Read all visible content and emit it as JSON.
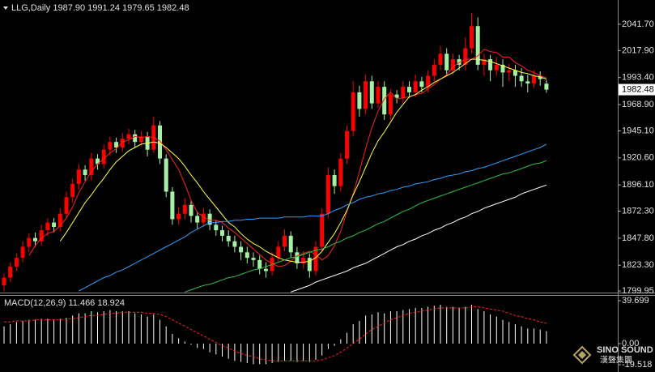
{
  "chart_data": [
    {
      "type": "candlestick",
      "title": "LLG,Daily  1987.90 1991.24 1979.65 1982.48",
      "up_color": "#ff0000",
      "down_color": "#a6f0a6",
      "ylim": [
        1798.5,
        2063.7
      ],
      "yticks": [
        {
          "value": 2041.7,
          "label": "2041.70"
        },
        {
          "value": 2017.9,
          "label": "2017.90"
        },
        {
          "value": 1993.4,
          "label": "1993.40"
        },
        {
          "value": 1968.9,
          "label": "1968.90"
        },
        {
          "value": 1945.1,
          "label": "1945.10"
        },
        {
          "value": 1920.6,
          "label": "1920.60"
        },
        {
          "value": 1896.1,
          "label": "1896.10"
        },
        {
          "value": 1872.3,
          "label": "1872.30"
        },
        {
          "value": 1847.8,
          "label": "1847.80"
        },
        {
          "value": 1823.3,
          "label": "1823.30"
        },
        1799.95
      ],
      "last_price": {
        "value": 1982.48,
        "label": "1982.48"
      },
      "ohlc": [
        [
          1805,
          1816,
          1800,
          1812
        ],
        [
          1812,
          1826,
          1808,
          1822
        ],
        [
          1822,
          1834,
          1818,
          1830
        ],
        [
          1830,
          1845,
          1826,
          1840
        ],
        [
          1840,
          1852,
          1835,
          1848
        ],
        [
          1848,
          1853,
          1840,
          1845
        ],
        [
          1845,
          1860,
          1841,
          1855
        ],
        [
          1855,
          1866,
          1850,
          1862
        ],
        [
          1862,
          1866,
          1853,
          1858
        ],
        [
          1858,
          1875,
          1854,
          1870
        ],
        [
          1870,
          1890,
          1866,
          1885
        ],
        [
          1885,
          1902,
          1880,
          1897
        ],
        [
          1897,
          1915,
          1892,
          1910
        ],
        [
          1910,
          1914,
          1900,
          1905
        ],
        [
          1905,
          1925,
          1900,
          1920
        ],
        [
          1920,
          1924,
          1910,
          1915
        ],
        [
          1915,
          1933,
          1911,
          1928
        ],
        [
          1928,
          1940,
          1923,
          1935
        ],
        [
          1935,
          1939,
          1925,
          1930
        ],
        [
          1930,
          1943,
          1926,
          1938
        ],
        [
          1938,
          1947,
          1933,
          1942
        ],
        [
          1942,
          1946,
          1930,
          1935
        ],
        [
          1935,
          1945,
          1931,
          1940
        ],
        [
          1940,
          1944,
          1922,
          1928
        ],
        [
          1928,
          1958,
          1925,
          1950
        ],
        [
          1950,
          1954,
          1915,
          1920
        ],
        [
          1920,
          1924,
          1885,
          1890
        ],
        [
          1890,
          1894,
          1860,
          1865
        ],
        [
          1865,
          1876,
          1860,
          1870
        ],
        [
          1870,
          1884,
          1865,
          1878
        ],
        [
          1878,
          1882,
          1862,
          1868
        ],
        [
          1868,
          1872,
          1856,
          1862
        ],
        [
          1862,
          1875,
          1858,
          1870
        ],
        [
          1870,
          1874,
          1855,
          1860
        ],
        [
          1860,
          1864,
          1850,
          1855
        ],
        [
          1855,
          1859,
          1845,
          1850
        ],
        [
          1850,
          1855,
          1840,
          1845
        ],
        [
          1845,
          1850,
          1835,
          1840
        ],
        [
          1840,
          1845,
          1828,
          1835
        ],
        [
          1835,
          1840,
          1825,
          1830
        ],
        [
          1830,
          1835,
          1822,
          1828
        ],
        [
          1828,
          1832,
          1815,
          1820
        ],
        [
          1820,
          1826,
          1812,
          1818
        ],
        [
          1818,
          1835,
          1814,
          1830
        ],
        [
          1830,
          1845,
          1826,
          1840
        ],
        [
          1840,
          1856,
          1836,
          1850
        ],
        [
          1850,
          1854,
          1830,
          1835
        ],
        [
          1835,
          1840,
          1820,
          1825
        ],
        [
          1825,
          1836,
          1820,
          1830
        ],
        [
          1830,
          1834,
          1812,
          1818
        ],
        [
          1818,
          1845,
          1814,
          1840
        ],
        [
          1840,
          1875,
          1836,
          1870
        ],
        [
          1870,
          1912,
          1866,
          1905
        ],
        [
          1905,
          1910,
          1888,
          1895
        ],
        [
          1895,
          1925,
          1890,
          1920
        ],
        [
          1920,
          1950,
          1915,
          1945
        ],
        [
          1945,
          1990,
          1940,
          1980
        ],
        [
          1980,
          1986,
          1958,
          1965
        ],
        [
          1965,
          1996,
          1960,
          1990
        ],
        [
          1990,
          1995,
          1965,
          1970
        ],
        [
          1970,
          1990,
          1966,
          1985
        ],
        [
          1985,
          1990,
          1955,
          1960
        ],
        [
          1960,
          1983,
          1955,
          1978
        ],
        [
          1978,
          1982,
          1970,
          1975
        ],
        [
          1975,
          1990,
          1970,
          1985
        ],
        [
          1985,
          1990,
          1975,
          1980
        ],
        [
          1980,
          1996,
          1976,
          1990
        ],
        [
          1990,
          1994,
          1980,
          1985
        ],
        [
          1985,
          2000,
          1980,
          1995
        ],
        [
          1995,
          2010,
          1990,
          2005
        ],
        [
          2005,
          2022,
          2000,
          2015
        ],
        [
          2015,
          2020,
          1995,
          2000
        ],
        [
          2000,
          2015,
          1996,
          2010
        ],
        [
          2010,
          2014,
          2000,
          2005
        ],
        [
          2005,
          2030,
          2000,
          2020
        ],
        [
          2020,
          2052,
          2015,
          2040
        ],
        [
          2040,
          2048,
          2000,
          2005
        ],
        [
          2005,
          2015,
          1995,
          2010
        ],
        [
          2010,
          2014,
          1990,
          2000
        ],
        [
          2000,
          2012,
          1995,
          2005
        ],
        [
          2005,
          2010,
          1985,
          1998
        ],
        [
          1998,
          2006,
          1990,
          2000
        ],
        [
          2000,
          2005,
          1985,
          1995
        ],
        [
          1995,
          2002,
          1985,
          1990
        ],
        [
          1990,
          1996,
          1980,
          1988
        ],
        [
          1988,
          2000,
          1984,
          1995
        ],
        [
          1995,
          1999,
          1986,
          1992
        ],
        [
          1987.9,
          1991.24,
          1979.65,
          1982.48
        ]
      ],
      "lines": [
        {
          "color": "#ff2020",
          "values": [
            null,
            null,
            null,
            null,
            1832,
            1841,
            1848,
            1852,
            1854,
            1859,
            1866,
            1876,
            1889,
            1899,
            1908,
            1915,
            1920,
            1925,
            1929,
            1935,
            1937,
            1940,
            1939,
            1940,
            1939,
            1936,
            1928,
            1919,
            1910,
            1897,
            1882,
            1871,
            1867,
            1864,
            1864,
            1862,
            1857,
            1853,
            1848,
            1843,
            1838,
            1833,
            1828,
            1825,
            1822,
            1823,
            1827,
            1832,
            1834,
            1836,
            1833,
            1828,
            1832,
            1841,
            1854,
            1872,
            1888,
            1908,
            1929,
            1948,
            1963,
            1974,
            1980,
            1974,
            1975,
            1976,
            1978,
            1979,
            1983,
            1987,
            1992,
            1996,
            2003,
            2007,
            2010,
            2010,
            2013,
            2019,
            2017,
            2016,
            2012,
            2012,
            2007,
            2004,
            2000,
            1998,
            1995,
            1993
          ]
        },
        {
          "color": "#ffff40",
          "values": [
            null,
            null,
            null,
            null,
            null,
            null,
            null,
            null,
            null,
            1845,
            1853,
            1862,
            1871,
            1880,
            1887,
            1895,
            1902,
            1910,
            1917,
            1922,
            1927,
            1930,
            1933,
            1934,
            1935,
            1934,
            1930,
            1925,
            1920,
            1913,
            1905,
            1898,
            1890,
            1883,
            1876,
            1869,
            1862,
            1858,
            1852,
            1847,
            1843,
            1840,
            1836,
            1833,
            1830,
            1828,
            1827,
            1826,
            1826,
            1827,
            1830,
            1836,
            1844,
            1852,
            1862,
            1873,
            1887,
            1899,
            1912,
            1925,
            1936,
            1944,
            1953,
            1962,
            1969,
            1976,
            1978,
            1982,
            1985,
            1989,
            1992,
            1995,
            1998,
            2002,
            2006,
            2010,
            2010,
            2009,
            2008,
            2006,
            2004,
            2002,
            2000,
            1998,
            1997,
            1995,
            1994,
            1992
          ]
        },
        {
          "color": "#2f9fff",
          "values": [
            null,
            null,
            null,
            null,
            null,
            null,
            null,
            null,
            null,
            null,
            null,
            null,
            1800,
            1803,
            1806,
            1809,
            1812,
            1814,
            1817,
            1819,
            1822,
            1825,
            1828,
            1831,
            1834,
            1837,
            1840,
            1843,
            1846,
            1849,
            1853,
            1856,
            1859,
            1862,
            1862,
            1863,
            1863,
            1864,
            1864,
            1865,
            1865,
            1866,
            1866,
            1866,
            1866,
            1867,
            1867,
            1867,
            1867,
            1868,
            1868,
            1868,
            1870,
            1873,
            1875,
            1878,
            1880,
            1883,
            1885,
            1886,
            1888,
            1889,
            1891,
            1892,
            1894,
            1895,
            1897,
            1898,
            1899,
            1901,
            1902,
            1904,
            1905,
            1906,
            1908,
            1909,
            1911,
            1912,
            1914,
            1916,
            1918,
            1920,
            1922,
            1924,
            1926,
            1928,
            1930,
            1933
          ]
        },
        {
          "color": "#30c040",
          "values": [
            null,
            null,
            null,
            null,
            null,
            null,
            null,
            null,
            null,
            null,
            null,
            null,
            null,
            null,
            null,
            null,
            null,
            null,
            null,
            null,
            null,
            null,
            null,
            null,
            null,
            null,
            null,
            null,
            null,
            1799,
            1801,
            1803,
            1805,
            1806,
            1808,
            1810,
            1812,
            1813,
            1815,
            1817,
            1819,
            1820,
            1822,
            1824,
            1826,
            1828,
            1830,
            1831,
            1833,
            1835,
            1837,
            1838,
            1840,
            1843,
            1845,
            1848,
            1850,
            1853,
            1855,
            1858,
            1861,
            1863,
            1866,
            1869,
            1872,
            1874,
            1877,
            1880,
            1882,
            1884,
            1886,
            1888,
            1890,
            1892,
            1894,
            1896,
            1898,
            1900,
            1902,
            1904,
            1906,
            1907,
            1909,
            1911,
            1913,
            1915,
            1916,
            1918
          ]
        },
        {
          "color": "#ffffff",
          "values": [
            null,
            null,
            null,
            null,
            null,
            null,
            null,
            null,
            null,
            null,
            null,
            null,
            null,
            null,
            null,
            null,
            null,
            null,
            null,
            null,
            null,
            null,
            null,
            null,
            null,
            null,
            null,
            null,
            null,
            null,
            null,
            null,
            null,
            null,
            null,
            null,
            null,
            null,
            null,
            null,
            null,
            null,
            null,
            null,
            null,
            null,
            1799,
            1801,
            1803,
            1805,
            1808,
            1810,
            1812,
            1814,
            1816,
            1818,
            1821,
            1823,
            1825,
            1828,
            1831,
            1834,
            1837,
            1840,
            1842,
            1845,
            1847,
            1850,
            1852,
            1855,
            1857,
            1860,
            1862,
            1865,
            1867,
            1870,
            1872,
            1875,
            1877,
            1879,
            1881,
            1883,
            1885,
            1888,
            1890,
            1892,
            1894,
            1896
          ]
        }
      ]
    },
    {
      "type": "macd",
      "title": "MACD(12,26,9) 11.466 18.924",
      "color": "#ffffff",
      "ylim": [
        -24.0,
        44.95
      ],
      "yticks": [
        39.699,
        {
          "value": 0,
          "label": "0.00"
        },
        -19.518
      ],
      "values": [
        16,
        18,
        20,
        21,
        22,
        22,
        23,
        23,
        22,
        23,
        24,
        26,
        28,
        28,
        30,
        29,
        30,
        31,
        30,
        30,
        30,
        28,
        27,
        25,
        27,
        22,
        16,
        9,
        5,
        2,
        -1,
        -4,
        -5,
        -8,
        -10,
        -12,
        -14,
        -16,
        -17,
        -18,
        -19,
        -19,
        -19,
        -18,
        -17,
        -16,
        -16,
        -17,
        -16,
        -17,
        -15,
        -11,
        -5,
        -2,
        4,
        10,
        18,
        21,
        26,
        27,
        29,
        28,
        30,
        30,
        31,
        32,
        33,
        33,
        34,
        35,
        36,
        34,
        34,
        33,
        34,
        36,
        32,
        30,
        27,
        25,
        22,
        20,
        18,
        16,
        14,
        14,
        13,
        11.466
      ],
      "signal": {
        "color": "#ff2020",
        "values": [
          20,
          20,
          21,
          21,
          21,
          22,
          22,
          22,
          22,
          22,
          23,
          23,
          24,
          25,
          26,
          26,
          27,
          28,
          28,
          29,
          29,
          29,
          29,
          28,
          28,
          27,
          25,
          22,
          19,
          16,
          13,
          10,
          7,
          4,
          1,
          -2,
          -4,
          -7,
          -9,
          -11,
          -12,
          -14,
          -15,
          -16,
          -16,
          -16,
          -16,
          -16,
          -16,
          -16,
          -16,
          -15,
          -13,
          -11,
          -8,
          -4,
          0,
          4,
          9,
          13,
          16,
          19,
          22,
          24,
          26,
          28,
          29,
          30,
          31,
          32,
          33,
          33,
          33,
          33,
          33,
          34,
          34,
          33,
          32,
          31,
          30,
          28,
          26,
          25,
          23,
          22,
          20,
          18.924
        ]
      }
    }
  ],
  "watermark": {
    "brand": "SINO SOUND",
    "subtitle": "漢聲集團"
  }
}
